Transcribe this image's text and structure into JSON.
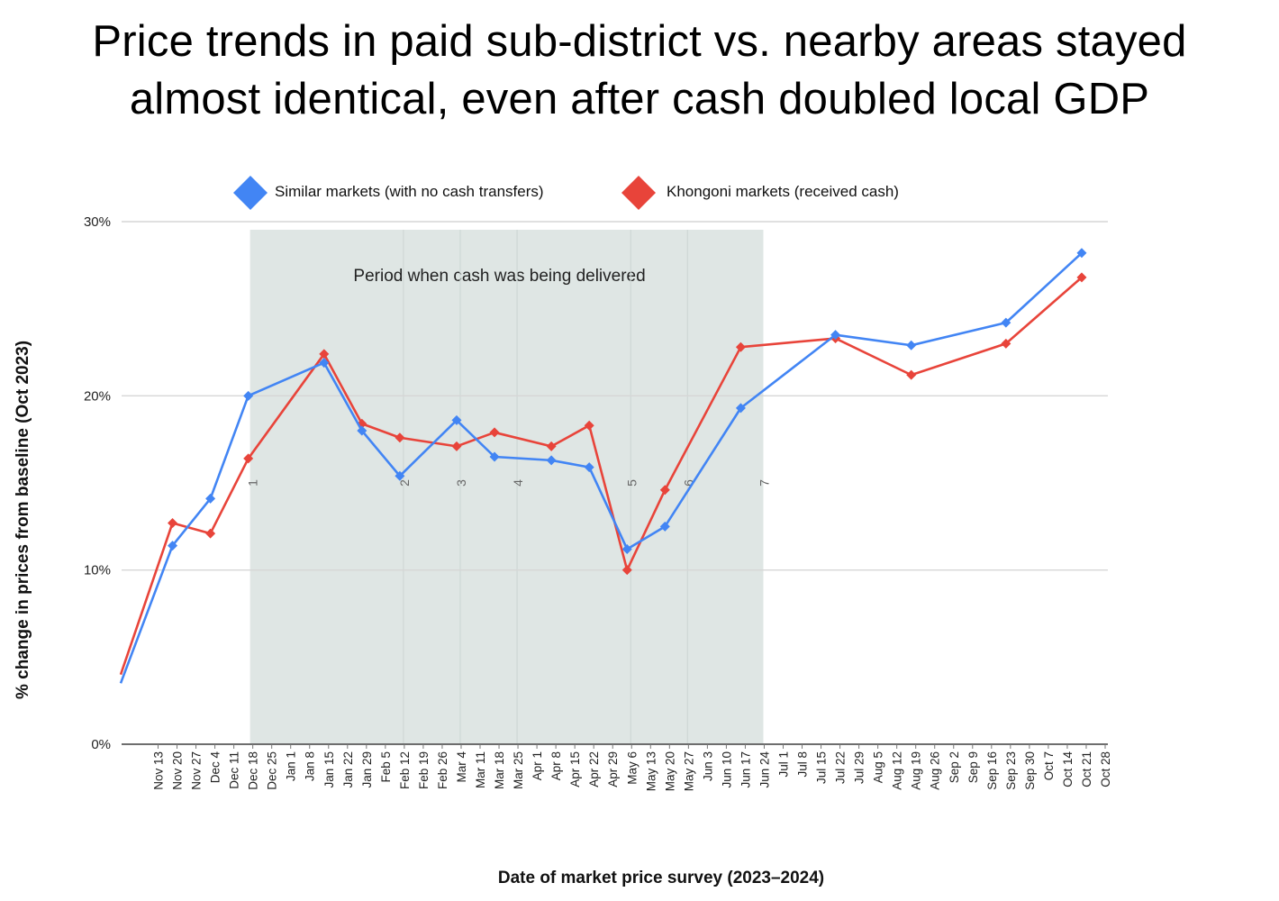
{
  "title": {
    "line1": "Price trends in paid sub-district vs. nearby areas stayed",
    "line2": "almost identical, even after cash doubled local GDP"
  },
  "colors": {
    "similar": "#4285f4",
    "khongoni": "#e8443a",
    "band": "#dfe6e4",
    "grid": "#d6d6d6"
  },
  "chart_data": {
    "type": "line",
    "title": "Price trends in paid sub-district vs. nearby areas stayed almost identical, even after cash doubled local GDP",
    "xlabel": "Date of market price survey (2023–2024)",
    "ylabel": "% change in prices from baseline (Oct 2023)",
    "ylim": [
      0,
      30
    ],
    "yticks": [
      {
        "value": 0,
        "label": "0%"
      },
      {
        "value": 10,
        "label": "10%"
      },
      {
        "value": 20,
        "label": "20%"
      },
      {
        "value": 30,
        "label": "30%"
      }
    ],
    "legend_position": "top",
    "categories": [
      "Nov 13",
      "Nov 20",
      "Nov 27",
      "Dec 4",
      "Dec 11",
      "Dec 18",
      "Dec 25",
      "Jan 1",
      "Jan 8",
      "Jan 15",
      "Jan 22",
      "Jan 29",
      "Feb 5",
      "Feb 12",
      "Feb 19",
      "Feb 26",
      "Mar 4",
      "Mar 11",
      "Mar 18",
      "Mar 25",
      "Apr 1",
      "Apr 8",
      "Apr 15",
      "Apr 22",
      "Apr 29",
      "May 6",
      "May 13",
      "May 20",
      "May 27",
      "Jun 3",
      "Jun 10",
      "Jun 17",
      "Jun 24",
      "Jul 1",
      "Jul 8",
      "Jul 15",
      "Jul 22",
      "Jul 29",
      "Aug 5",
      "Aug 12",
      "Aug 19",
      "Aug 26",
      "Sep 2",
      "Sep 9",
      "Sep 16",
      "Sep 23",
      "Sep 30",
      "Oct 7",
      "Oct 14",
      "Oct 21",
      "Oct 28"
    ],
    "series": [
      {
        "name": "Similar markets (with no cash transfers)",
        "start_value": 3.5,
        "points": [
          {
            "label": "Nov 20",
            "value": 11.4
          },
          {
            "label": "Dec 4",
            "value": 14.1
          },
          {
            "label": "Dec 18",
            "value": 20.0
          },
          {
            "label": "Jan 15",
            "value": 21.9
          },
          {
            "label": "Jan 29",
            "value": 18.0
          },
          {
            "label": "Feb 12",
            "value": 15.4
          },
          {
            "label": "Mar 4",
            "value": 18.6
          },
          {
            "label": "Mar 18",
            "value": 16.5
          },
          {
            "label": "Apr 8",
            "value": 16.3
          },
          {
            "label": "Apr 22",
            "value": 15.9
          },
          {
            "label": "May 6",
            "value": 11.2
          },
          {
            "label": "May 20",
            "value": 12.5
          },
          {
            "label": "Jun 17",
            "value": 19.3
          },
          {
            "label": "Jul 22",
            "value": 23.5
          },
          {
            "label": "Aug 19",
            "value": 22.9
          },
          {
            "label": "Sep 23",
            "value": 24.2
          },
          {
            "label": "Oct 21",
            "value": 28.2
          }
        ]
      },
      {
        "name": "Khongoni markets (received cash)",
        "start_value": 4.0,
        "points": [
          {
            "label": "Nov 20",
            "value": 12.7
          },
          {
            "label": "Dec 4",
            "value": 12.1
          },
          {
            "label": "Dec 18",
            "value": 16.4
          },
          {
            "label": "Jan 15",
            "value": 22.4
          },
          {
            "label": "Jan 29",
            "value": 18.4
          },
          {
            "label": "Feb 12",
            "value": 17.6
          },
          {
            "label": "Mar 4",
            "value": 17.1
          },
          {
            "label": "Mar 18",
            "value": 17.9
          },
          {
            "label": "Apr 8",
            "value": 17.1
          },
          {
            "label": "Apr 22",
            "value": 18.3
          },
          {
            "label": "May 6",
            "value": 10.0
          },
          {
            "label": "May 20",
            "value": 14.6
          },
          {
            "label": "Jun 17",
            "value": 22.8
          },
          {
            "label": "Jul 22",
            "value": 23.3
          },
          {
            "label": "Aug 19",
            "value": 21.2
          },
          {
            "label": "Sep 23",
            "value": 23.0
          },
          {
            "label": "Oct 21",
            "value": 26.8
          }
        ]
      }
    ],
    "shaded_period": {
      "label": "Period when cash was being delivered",
      "start": "Dec 18",
      "end": "Jun 24"
    },
    "period_markers": [
      {
        "label": "1",
        "at": "Dec 18"
      },
      {
        "label": "2",
        "at": "Feb 12"
      },
      {
        "label": "3",
        "at": "Mar 4"
      },
      {
        "label": "4",
        "at": "Mar 25"
      },
      {
        "label": "5",
        "at": "May 6"
      },
      {
        "label": "6",
        "at": "May 27"
      },
      {
        "label": "7",
        "at": "Jun 24"
      }
    ]
  }
}
